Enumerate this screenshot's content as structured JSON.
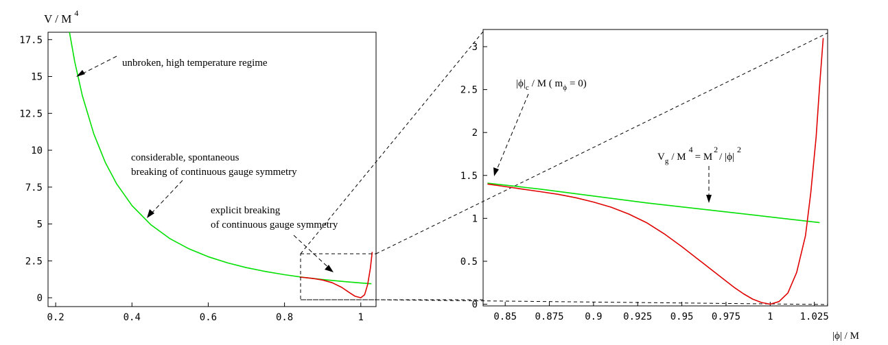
{
  "y_axis_title": {
    "base": "V / M",
    "exponent": "4"
  },
  "x_axis_title": "|ϕ| / M",
  "colors": {
    "green_curve": "#00e000",
    "red_curve": "#e00000",
    "frame": "#000000",
    "dashes": "#000000"
  },
  "chart_data": [
    {
      "type": "line",
      "xlim": [
        0.18,
        1.04
      ],
      "ylim": [
        -0.6,
        18.0
      ],
      "x_ticks": [
        0.2,
        0.4,
        0.6,
        0.8,
        1.0
      ],
      "x_tick_labels": [
        "0.2",
        "0.4",
        "0.6",
        "0.8",
        "1"
      ],
      "y_ticks": [
        0,
        2.5,
        5,
        7.5,
        10,
        12.5,
        15,
        17.5
      ],
      "y_tick_labels": [
        "0",
        "2.5",
        "5",
        "7.5",
        "10",
        "12.5",
        "15",
        "17.5"
      ],
      "grid": false,
      "series": [
        {
          "color": "#00e000",
          "x": [
            0.23,
            0.25,
            0.27,
            0.3,
            0.33,
            0.36,
            0.4,
            0.45,
            0.5,
            0.55,
            0.6,
            0.65,
            0.7,
            0.75,
            0.8,
            0.85,
            0.9,
            0.95,
            1.0,
            1.028
          ],
          "y": [
            18.9,
            16.0,
            13.7,
            11.11,
            9.18,
            7.72,
            6.25,
            4.94,
            4.0,
            3.31,
            2.78,
            2.37,
            2.04,
            1.78,
            1.56,
            1.38,
            1.23,
            1.11,
            1.0,
            0.95
          ]
        },
        {
          "color": "#e00000",
          "x": [
            0.84,
            0.86,
            0.88,
            0.9,
            0.925,
            0.95,
            0.97,
            0.985,
            1.0,
            1.01,
            1.018,
            1.025,
            1.03
          ],
          "y": [
            1.4,
            1.35,
            1.29,
            1.2,
            1.02,
            0.7,
            0.35,
            0.1,
            0.0,
            0.2,
            0.9,
            2.0,
            3.1
          ]
        }
      ],
      "annotations": [
        "unbroken, high temperature regime",
        "considerable, spontaneous",
        "breaking of continuous gauge symmetry",
        "explicit breaking",
        "of continuous gauge symmetry"
      ]
    },
    {
      "type": "line",
      "xlim": [
        0.8375,
        1.0325
      ],
      "ylim": [
        -0.02,
        3.2
      ],
      "x_ticks": [
        0.85,
        0.875,
        0.9,
        0.925,
        0.95,
        0.975,
        1.0,
        1.025
      ],
      "x_tick_labels": [
        "0.85",
        "0.875",
        "0.9",
        "0.925",
        "0.95",
        "0.975",
        "1",
        "1.025"
      ],
      "y_ticks": [
        0,
        0.5,
        1,
        1.5,
        2,
        2.5,
        3
      ],
      "y_tick_labels": [
        "0",
        "0.5",
        "1",
        "1.5",
        "2",
        "2.5",
        "3"
      ],
      "grid": false,
      "series": [
        {
          "color": "#00e000",
          "x": [
            0.84,
            0.87,
            0.9,
            0.93,
            0.96,
            0.99,
            1.028
          ],
          "y": [
            1.41,
            1.34,
            1.26,
            1.18,
            1.11,
            1.04,
            0.95
          ]
        },
        {
          "color": "#e00000",
          "x": [
            0.84,
            0.85,
            0.86,
            0.87,
            0.88,
            0.89,
            0.9,
            0.91,
            0.92,
            0.93,
            0.94,
            0.95,
            0.96,
            0.97,
            0.98,
            0.985,
            0.99,
            0.995,
            1.0,
            1.005,
            1.01,
            1.015,
            1.02,
            1.023,
            1.026,
            1.028,
            1.03
          ],
          "y": [
            1.4,
            1.37,
            1.34,
            1.31,
            1.28,
            1.24,
            1.19,
            1.13,
            1.05,
            0.95,
            0.82,
            0.67,
            0.51,
            0.35,
            0.19,
            0.12,
            0.06,
            0.02,
            0.0,
            0.03,
            0.13,
            0.37,
            0.8,
            1.3,
            1.95,
            2.55,
            3.1
          ]
        }
      ],
      "annotation_phi_c": {
        "base": "|ϕ|",
        "sub": "c",
        "rest": "/ M  ( m",
        "sub2": "ϕ",
        "end": "= 0)"
      },
      "annotation_vg": {
        "base": "V",
        "sub": "g",
        "mid": "/ M",
        "sup1": "4",
        "eq": "= M",
        "sup2": "2",
        "mid2": "/ |ϕ|",
        "sup3": "2"
      }
    }
  ]
}
